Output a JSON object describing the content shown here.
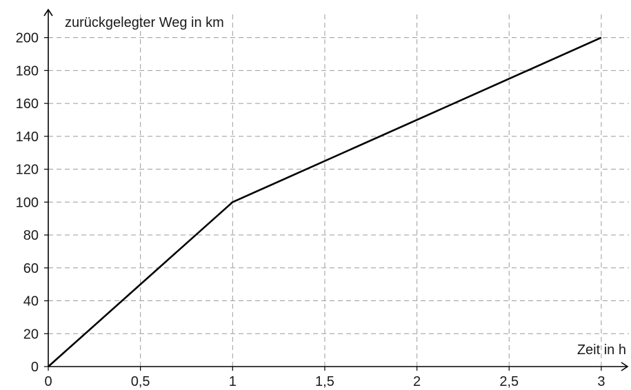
{
  "chart_data": {
    "type": "line",
    "title": "",
    "xlabel": "Zeit in h",
    "ylabel": "zurückgelegter Weg in km",
    "xlim": [
      0,
      3
    ],
    "ylim": [
      0,
      200
    ],
    "x_ticks": [
      "0",
      "0,5",
      "1",
      "1,5",
      "2",
      "2,5",
      "3"
    ],
    "y_ticks": [
      "0",
      "20",
      "40",
      "60",
      "80",
      "100",
      "120",
      "140",
      "160",
      "180",
      "200"
    ],
    "grid": true,
    "grid_style": "dashed",
    "series": [
      {
        "x": [
          0,
          1,
          3
        ],
        "y": [
          0,
          100,
          200
        ]
      }
    ],
    "colors": {
      "line": "#000000",
      "grid": "#9a9a9a",
      "axis": "#000000",
      "text": "#1a1a1a"
    }
  }
}
